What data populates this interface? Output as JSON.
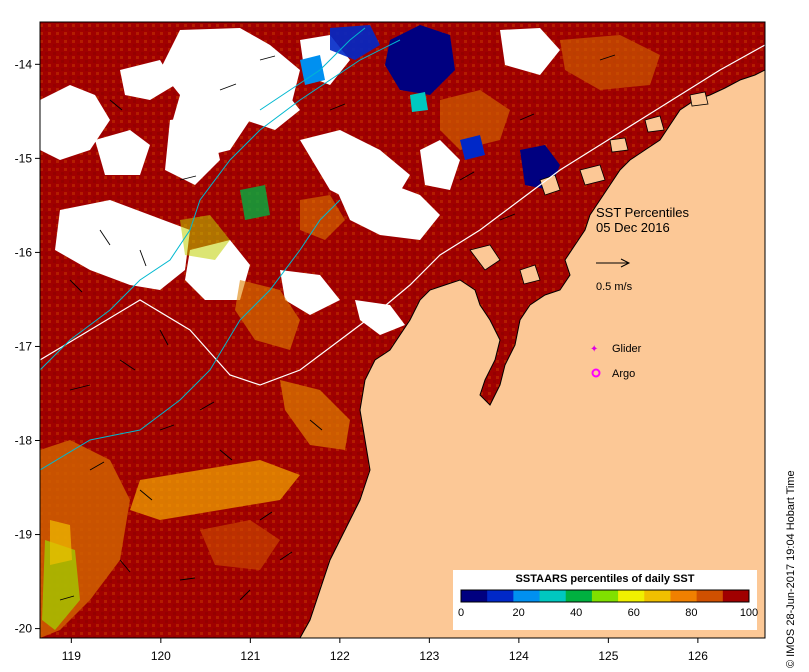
{
  "map": {
    "title": "SST Percentiles",
    "date": "05 Dec 2016",
    "scale_label": "0.5 m/s",
    "legend": [
      {
        "label": "Glider",
        "color": "#e000e0",
        "icon": "star-marker-icon"
      },
      {
        "label": "Argo",
        "color": "#ff00ff",
        "icon": "circle-marker-icon"
      }
    ],
    "credit": "© IMOS 28-Jun-2017 19:04 Hobart Time",
    "lon_ticks": [
      "119",
      "120",
      "121",
      "122",
      "123",
      "124",
      "125",
      "126"
    ],
    "lat_ticks": [
      "-14",
      "-15",
      "-16",
      "-17",
      "-18",
      "-19",
      "-20"
    ],
    "lon_range": [
      118.65,
      126.75
    ],
    "lat_range": [
      -20.1,
      -13.55
    ],
    "colors": {
      "ocean_high": "#a00000",
      "land": "#fcc896",
      "current_lines": "#00b8d0",
      "contour_lines": "#ffffff"
    }
  },
  "colorbar": {
    "title": "SSTAARS percentiles of daily SST",
    "tick_labels": [
      "0",
      "20",
      "40",
      "60",
      "80",
      "100"
    ],
    "colors": [
      "#000080",
      "#0028c8",
      "#0090f0",
      "#00c8c0",
      "#00b040",
      "#80e000",
      "#f0f000",
      "#f0c000",
      "#f08000",
      "#d05000",
      "#a00000"
    ]
  }
}
